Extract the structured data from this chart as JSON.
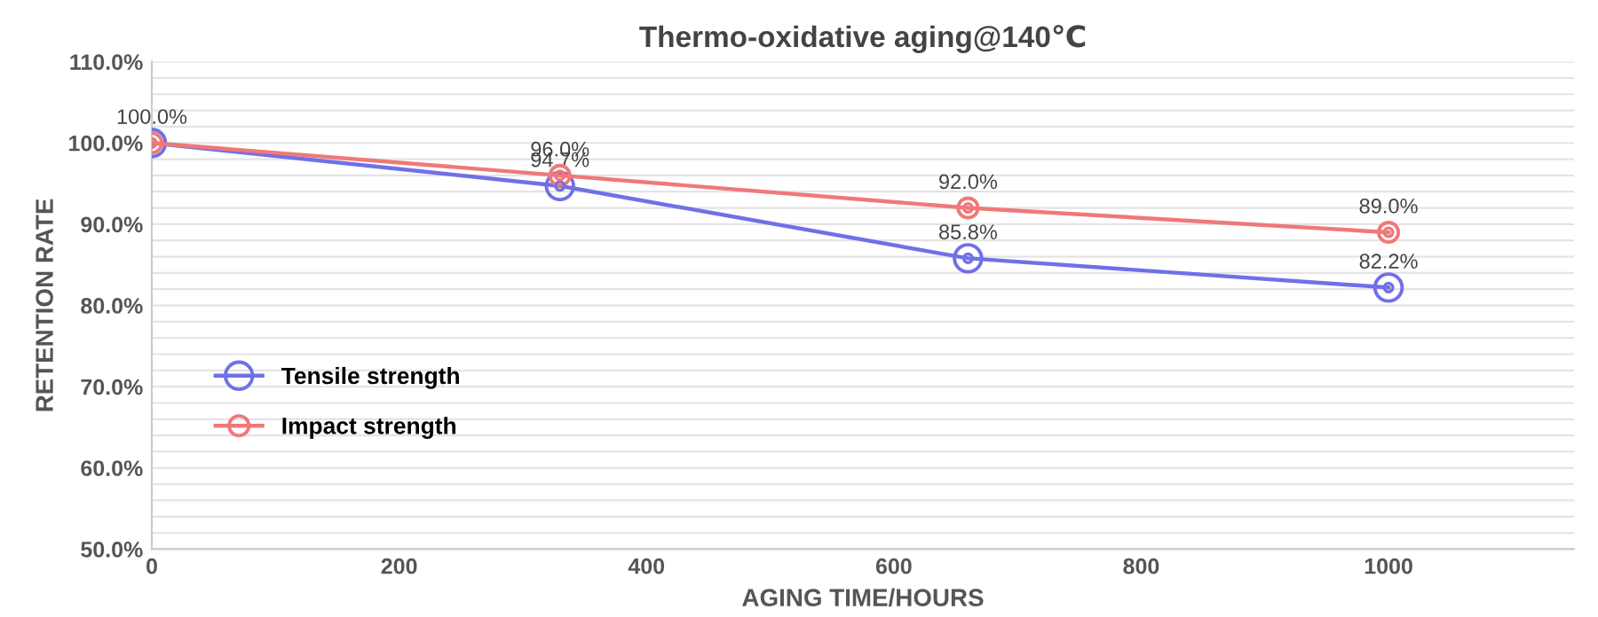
{
  "chart_data": {
    "type": "line",
    "title": "Thermo-oxidative aging@140℃",
    "xlabel": "AGING TIME/HOURS",
    "ylabel": "RETENTION RATE",
    "x": [
      0,
      330,
      660,
      1000
    ],
    "series": [
      {
        "name": "Tensile strength",
        "color": "#7070e8",
        "values": [
          100.0,
          94.7,
          85.8,
          82.2
        ],
        "value_labels": [
          null,
          "94.7%",
          "85.8%",
          "82.2%"
        ]
      },
      {
        "name": "Impact strength",
        "color": "#f07878",
        "values": [
          100.0,
          96.0,
          92.0,
          89.0
        ],
        "value_labels": [
          "100.0%",
          "96.0%",
          "92.0%",
          "89.0%"
        ]
      }
    ],
    "xlim": [
      0,
      1150
    ],
    "xticks": [
      0,
      200,
      400,
      600,
      800,
      1000
    ],
    "ylim": [
      50,
      110
    ],
    "yticks": [
      {
        "value": 50,
        "label": "50.0%"
      },
      {
        "value": 52,
        "label": null
      },
      {
        "value": 54,
        "label": null
      },
      {
        "value": 56,
        "label": null
      },
      {
        "value": 58,
        "label": null
      },
      {
        "value": 60,
        "label": "60.0%"
      },
      {
        "value": 62,
        "label": null
      },
      {
        "value": 64,
        "label": null
      },
      {
        "value": 66,
        "label": null
      },
      {
        "value": 68,
        "label": null
      },
      {
        "value": 70,
        "label": "70.0%"
      },
      {
        "value": 72,
        "label": null
      },
      {
        "value": 74,
        "label": null
      },
      {
        "value": 76,
        "label": null
      },
      {
        "value": 78,
        "label": null
      },
      {
        "value": 80,
        "label": "80.0%"
      },
      {
        "value": 82,
        "label": null
      },
      {
        "value": 84,
        "label": null
      },
      {
        "value": 86,
        "label": null
      },
      {
        "value": 88,
        "label": null
      },
      {
        "value": 90,
        "label": "90.0%"
      },
      {
        "value": 92,
        "label": null
      },
      {
        "value": 94,
        "label": null
      },
      {
        "value": 96,
        "label": null
      },
      {
        "value": 98,
        "label": null
      },
      {
        "value": 100,
        "label": "100.0%"
      },
      {
        "value": 102,
        "label": null
      },
      {
        "value": 104,
        "label": null
      },
      {
        "value": 106,
        "label": null
      },
      {
        "value": 108,
        "label": null
      },
      {
        "value": 110,
        "label": "110.0%"
      }
    ],
    "grid": "y",
    "legend": "center left",
    "marker": "circle",
    "line_style": "solid"
  }
}
